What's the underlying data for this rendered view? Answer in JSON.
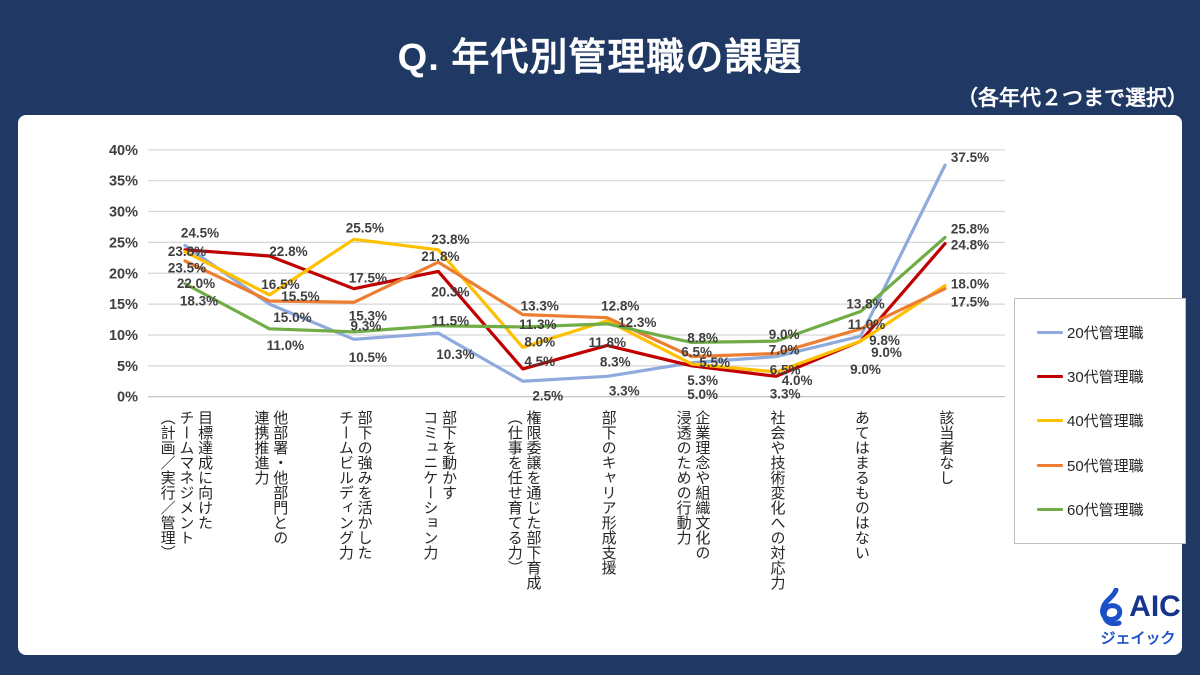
{
  "header": {
    "title": "Q. 年代別管理職の課題",
    "subtitle": "（各年代２つまで選択）"
  },
  "chart_data": {
    "type": "line",
    "title": "Q. 年代別管理職の課題",
    "subtitle": "（各年代２つまで選択）",
    "ylim": [
      0,
      40
    ],
    "ytick_step": 5,
    "ytick_suffix": "%",
    "grid": true,
    "legend_position": "right",
    "label_decimals": 1,
    "label_suffix": "%",
    "categories": [
      [
        "目標達成に向けた",
        "チームマネジメント",
        "（計画／実行／管理）"
      ],
      [
        "他部署・他部門との",
        "連携推進力"
      ],
      [
        "部下の強みを活かした",
        "チームビルディング力"
      ],
      [
        "部下を動かす",
        "コミュニケーション力"
      ],
      [
        "権限委譲を通じた部下育成",
        "（仕事を任せ育てる力）"
      ],
      [
        "部下のキャリア形成支援"
      ],
      [
        "企業理念や組織文化の",
        "浸透のための行動力"
      ],
      [
        "社会や技術変化への対応力"
      ],
      [
        "あてはまるものはない"
      ],
      [
        "該当者なし"
      ]
    ],
    "series": [
      {
        "name": "20代管理職",
        "color": "#8faadc",
        "values": [
          24.5,
          15.0,
          9.3,
          10.3,
          2.5,
          3.3,
          5.5,
          6.5,
          9.8,
          37.5
        ]
      },
      {
        "name": "30代管理職",
        "color": "#c00000",
        "values": [
          23.8,
          22.8,
          17.5,
          20.3,
          4.5,
          8.3,
          5.0,
          3.3,
          9.0,
          24.8
        ]
      },
      {
        "name": "40代管理職",
        "color": "#ffc000",
        "values": [
          23.5,
          16.5,
          25.5,
          23.8,
          8.0,
          12.3,
          5.3,
          4.0,
          9.0,
          18.0
        ]
      },
      {
        "name": "50代管理職",
        "color": "#ed7d31",
        "values": [
          22.0,
          15.5,
          15.3,
          21.8,
          13.3,
          12.8,
          6.5,
          7.0,
          11.0,
          17.5
        ]
      },
      {
        "name": "60代管理職",
        "color": "#70ad47",
        "values": [
          18.3,
          11.0,
          10.5,
          11.5,
          11.3,
          11.8,
          8.8,
          9.0,
          13.8,
          25.8
        ]
      }
    ]
  },
  "logo": {
    "text": "AIC",
    "kana": "ジェイック"
  }
}
